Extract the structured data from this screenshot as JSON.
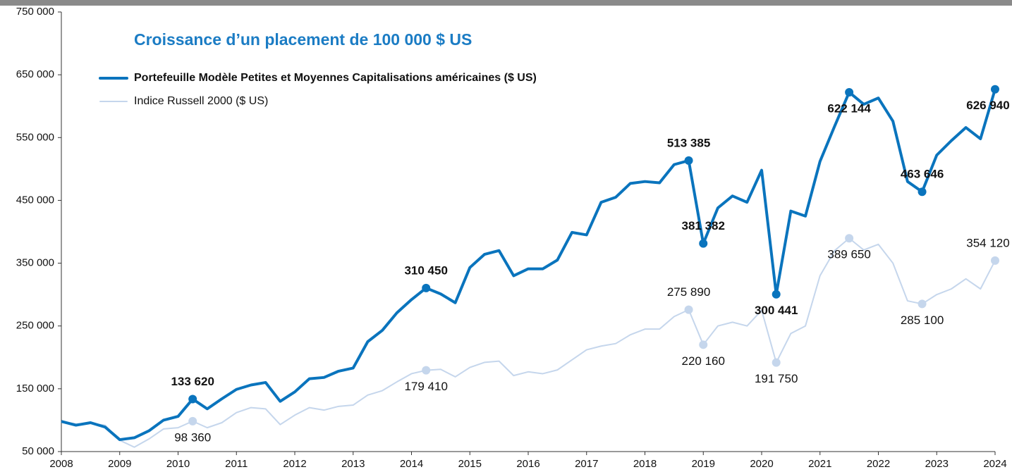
{
  "chart_data": {
    "type": "line",
    "title": "Croissance d’un placement de 100 000 $ US",
    "x": [
      2008,
      2008.25,
      2008.5,
      2008.75,
      2009,
      2009.25,
      2009.5,
      2009.75,
      2010,
      2010.25,
      2010.5,
      2010.75,
      2011,
      2011.25,
      2011.5,
      2011.75,
      2012,
      2012.25,
      2012.5,
      2012.75,
      2013,
      2013.25,
      2013.5,
      2013.75,
      2014,
      2014.25,
      2014.5,
      2014.75,
      2015,
      2015.25,
      2015.5,
      2015.75,
      2016,
      2016.25,
      2016.5,
      2016.75,
      2017,
      2017.25,
      2017.5,
      2017.75,
      2018,
      2018.25,
      2018.5,
      2018.75,
      2019,
      2019.25,
      2019.5,
      2019.75,
      2020,
      2020.25,
      2020.5,
      2020.75,
      2021,
      2021.25,
      2021.5,
      2021.75,
      2022,
      2022.25,
      2022.5,
      2022.75,
      2023,
      2023.25,
      2023.5,
      2023.75,
      2024
    ],
    "series": [
      {
        "name": "Portefeuille Modèle Petites et Moyennes Capitalisations américaines ($ US)",
        "color": "#0a74bd",
        "values": [
          98000,
          92000,
          96000,
          89000,
          69000,
          72000,
          83000,
          100000,
          106000,
          133620,
          118000,
          134000,
          149000,
          156000,
          160000,
          130000,
          145000,
          166000,
          168000,
          178000,
          183000,
          225000,
          243000,
          271000,
          292000,
          310450,
          301000,
          287000,
          343000,
          364000,
          370000,
          330000,
          341000,
          341000,
          355000,
          399000,
          395000,
          447000,
          455000,
          477000,
          480000,
          478000,
          507000,
          513385,
          381382,
          438000,
          457000,
          447000,
          498000,
          300441,
          433000,
          425000,
          512000,
          568000,
          622144,
          603000,
          613000,
          576000,
          480000,
          463646,
          522000,
          545000,
          566000,
          548000,
          626940
        ],
        "value_labels": [
          null,
          null,
          null,
          null,
          null,
          null,
          null,
          null,
          null,
          "133 620",
          null,
          null,
          null,
          null,
          null,
          null,
          null,
          null,
          null,
          null,
          null,
          null,
          null,
          null,
          null,
          "310 450",
          null,
          null,
          null,
          null,
          null,
          null,
          null,
          null,
          null,
          null,
          null,
          null,
          null,
          null,
          null,
          null,
          null,
          "513 385",
          "381 382",
          null,
          null,
          null,
          null,
          "300 441",
          null,
          null,
          null,
          null,
          "622 144",
          null,
          null,
          null,
          null,
          "463 646",
          null,
          null,
          null,
          null,
          "626 940"
        ]
      },
      {
        "name": "Indice Russell 2000 ($ US)",
        "color": "#c5d6ec",
        "values": [
          98000,
          94000,
          95000,
          92000,
          68000,
          57000,
          70000,
          86000,
          88000,
          98360,
          88000,
          96000,
          112000,
          120000,
          118000,
          93000,
          108000,
          120000,
          116000,
          122000,
          124000,
          140000,
          147000,
          161000,
          174000,
          179410,
          181000,
          169000,
          184000,
          192000,
          194000,
          171000,
          177000,
          174000,
          180000,
          196000,
          212000,
          218000,
          222000,
          236000,
          245000,
          245000,
          265000,
          275890,
          220160,
          250000,
          256000,
          250000,
          275000,
          191750,
          238000,
          250000,
          330000,
          370000,
          389650,
          371000,
          380000,
          350000,
          290000,
          285100,
          300000,
          309000,
          325000,
          309000,
          354120
        ],
        "value_labels": [
          null,
          null,
          null,
          null,
          null,
          null,
          null,
          null,
          null,
          "98 360",
          null,
          null,
          null,
          null,
          null,
          null,
          null,
          null,
          null,
          null,
          null,
          null,
          null,
          null,
          null,
          "179 410",
          null,
          null,
          null,
          null,
          null,
          null,
          null,
          null,
          null,
          null,
          null,
          null,
          null,
          null,
          null,
          null,
          null,
          "275 890",
          "220 160",
          null,
          null,
          null,
          null,
          "191 750",
          null,
          null,
          null,
          null,
          "389 650",
          null,
          null,
          null,
          null,
          "285 100",
          null,
          null,
          null,
          null,
          "354 120"
        ]
      }
    ],
    "xlim": [
      2008,
      2024
    ],
    "xticks": [
      2008,
      2009,
      2010,
      2011,
      2012,
      2013,
      2014,
      2015,
      2016,
      2017,
      2018,
      2019,
      2020,
      2021,
      2022,
      2023,
      2024
    ],
    "ylim": [
      50000,
      750000
    ],
    "yticks": [
      {
        "value": 50000,
        "label": "50 000"
      },
      {
        "value": 150000,
        "label": "150 000"
      },
      {
        "value": 250000,
        "label": "250 000"
      },
      {
        "value": 350000,
        "label": "350 000"
      },
      {
        "value": 450000,
        "label": "450 000"
      },
      {
        "value": 550000,
        "label": "550 000"
      },
      {
        "value": 650000,
        "label": "650 000"
      },
      {
        "value": 750000,
        "label": "750 000"
      }
    ]
  }
}
